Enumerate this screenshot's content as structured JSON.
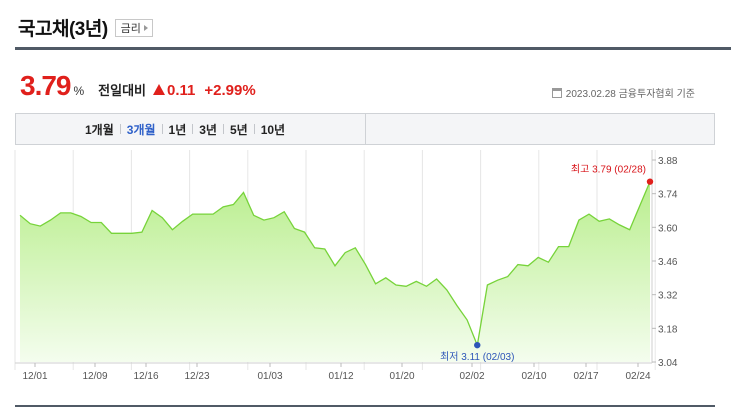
{
  "header": {
    "title": "국고채(3년)",
    "rate_button": "금리"
  },
  "quote": {
    "price": "3.79",
    "unit": "%",
    "vs_label": "전일대비",
    "change": "0.11",
    "change_pct": "+2.99%"
  },
  "asof": {
    "text": "2023.02.28 금융투자협회 기준",
    "icon": "calendar-icon"
  },
  "period_tabs": [
    {
      "label": "1개월",
      "active": false
    },
    {
      "label": "3개월",
      "active": true
    },
    {
      "label": "1년",
      "active": false
    },
    {
      "label": "3년",
      "active": false
    },
    {
      "label": "5년",
      "active": false
    },
    {
      "label": "10년",
      "active": false
    }
  ],
  "colors": {
    "up": "#e0201c",
    "low_point": "#2d55b8",
    "line": "#77d33a",
    "fill_top": "#b9ee8d",
    "fill_bottom": "#f4fdee",
    "active_tab": "#2f61c9"
  },
  "chart_data": {
    "type": "area",
    "ylim": [
      3.04,
      3.88
    ],
    "yticks": [
      "3.88",
      "3.74",
      "3.60",
      "3.46",
      "3.32",
      "3.18",
      "3.04"
    ],
    "x_tick_labels": [
      "12/01",
      "12/09",
      "12/16",
      "12/23",
      "01/03",
      "01/12",
      "01/20",
      "02/02",
      "02/10",
      "02/17",
      "02/24"
    ],
    "grid": "vertical",
    "series": [
      {
        "values": [
          3.65,
          3.615,
          3.605,
          3.63,
          3.66,
          3.66,
          3.645,
          3.62,
          3.62,
          3.575,
          3.575,
          3.575,
          3.58,
          3.67,
          3.64,
          3.59,
          3.625,
          3.655,
          3.655,
          3.655,
          3.685,
          3.695,
          3.745,
          3.65,
          3.63,
          3.64,
          3.665,
          3.595,
          3.58,
          3.515,
          3.51,
          3.44,
          3.495,
          3.515,
          3.445,
          3.365,
          3.39,
          3.36,
          3.355,
          3.375,
          3.355,
          3.385,
          3.34,
          3.275,
          3.215,
          3.11,
          3.36,
          3.38,
          3.395,
          3.445,
          3.44,
          3.475,
          3.455,
          3.52,
          3.52,
          3.63,
          3.655,
          3.625,
          3.635,
          3.61,
          3.59,
          3.69,
          3.79
        ]
      }
    ],
    "annotations": {
      "high": {
        "label": "최고",
        "value": "3.79",
        "date": "(02/28)"
      },
      "low": {
        "label": "최저",
        "value": "3.11",
        "date": "(02/03)"
      }
    }
  }
}
